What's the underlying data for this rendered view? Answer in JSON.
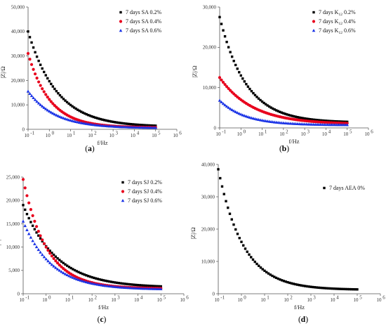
{
  "chart_data": [
    {
      "type": "scatter",
      "panel": "(a)",
      "caption_letter": "a",
      "xlabel": "f/Hz",
      "ylabel": "|Z|/Ω",
      "xscale": "log",
      "xlim": [
        0.1,
        1000000
      ],
      "ylim": [
        0,
        50000
      ],
      "yticks": [
        "0",
        "10,000",
        "20,000",
        "30,000",
        "40,000",
        "50,000"
      ],
      "legend_position": "top-right",
      "series": [
        {
          "name": "7 days SA 0.2%",
          "color": "#000000",
          "marker": "square",
          "z0": 40000,
          "zinf": 1000,
          "n": 0.32
        },
        {
          "name": "7 days SA 0.4%",
          "color": "#e8001c",
          "marker": "circle",
          "z0": 31000,
          "zinf": 700,
          "n": 0.42
        },
        {
          "name": "7 days SA 0.6%",
          "color": "#1a33e6",
          "marker": "triangle",
          "z0": 15500,
          "zinf": 500,
          "n": 0.34
        }
      ]
    },
    {
      "type": "scatter",
      "panel": "(b)",
      "caption_letter": "b",
      "xlabel": "f/Hz",
      "ylabel": "|Z|/Ω",
      "xscale": "log",
      "xlim": [
        0.1,
        1000000
      ],
      "ylim": [
        0,
        30000
      ],
      "yticks": [
        "0",
        "10,000",
        "20,000",
        "30,000"
      ],
      "legend_position": "top-right",
      "series": [
        {
          "name": "7 days K12 0.2%",
          "name_parts": [
            "7 days K",
            "12",
            " 0.2%"
          ],
          "color": "#000000",
          "marker": "square",
          "z0": 27500,
          "zinf": 1300,
          "n": 0.35
        },
        {
          "name": "7 days K12 0.4%",
          "name_parts": [
            "7 days K",
            "12",
            " 0.4%"
          ],
          "color": "#e8001c",
          "marker": "circle",
          "z0": 12500,
          "zinf": 900,
          "n": 0.28
        },
        {
          "name": "7 days K12 0.6%",
          "name_parts": [
            "7 days K",
            "12",
            " 0.6%"
          ],
          "color": "#1a33e6",
          "marker": "triangle",
          "z0": 6800,
          "zinf": 700,
          "n": 0.36
        }
      ]
    },
    {
      "type": "scatter",
      "panel": "(c)",
      "caption_letter": "c",
      "xlabel": "f/Hz",
      "ylabel": "|Z|/Ω",
      "xscale": "log",
      "xlim": [
        0.1,
        1000000
      ],
      "ylim": [
        0,
        25000
      ],
      "yticks": [
        "0",
        "5,000",
        "10,000",
        "15,000",
        "20,000",
        "25,000"
      ],
      "legend_position": "top-right",
      "series": [
        {
          "name": "7 days SJ 0.2%",
          "color": "#000000",
          "marker": "square",
          "z0": 19000,
          "zinf": 1300,
          "n": 0.3
        },
        {
          "name": "7 days SJ 0.4%",
          "color": "#e8001c",
          "marker": "circle",
          "z0": 24500,
          "zinf": 1100,
          "n": 0.42
        },
        {
          "name": "7 days SJ 0.6%",
          "color": "#1a33e6",
          "marker": "triangle",
          "z0": 15500,
          "zinf": 900,
          "n": 0.35
        }
      ]
    },
    {
      "type": "scatter",
      "panel": "(d)",
      "caption_letter": "d",
      "xlabel": "f/Hz",
      "ylabel": "|Z|/Ω",
      "xscale": "log",
      "xlim": [
        0.1,
        1000000
      ],
      "ylim": [
        0,
        40000
      ],
      "yticks": [
        "0",
        "10,000",
        "20,000",
        "30,000",
        "40,000"
      ],
      "legend_position": "top-right",
      "series": [
        {
          "name": "7 days AEA 0%",
          "color": "#000000",
          "marker": "square",
          "z0": 38500,
          "zinf": 1200,
          "n": 0.4
        }
      ]
    }
  ]
}
